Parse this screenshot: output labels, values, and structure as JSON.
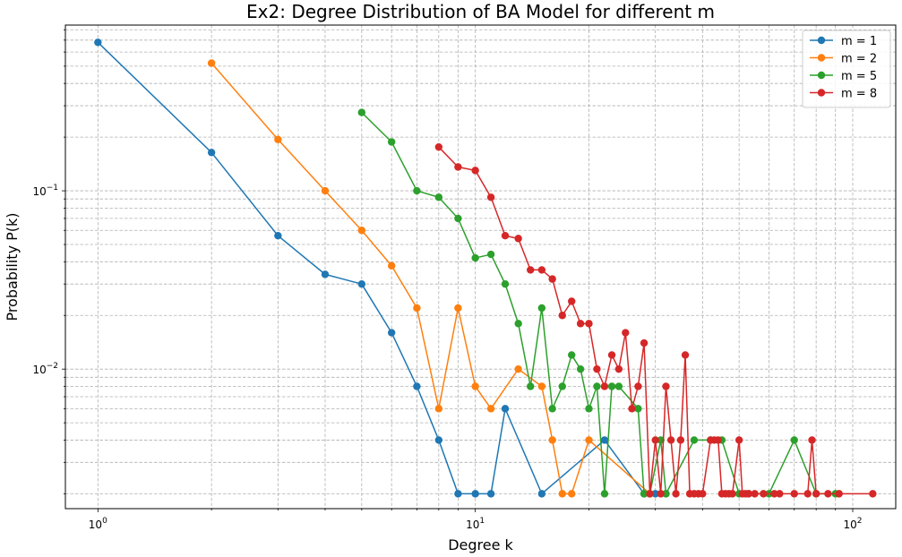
{
  "chart_data": {
    "type": "line",
    "title": "Ex2: Degree Distribution of BA Model for different m",
    "xlabel": "Degree k",
    "ylabel": "Probability P(k)",
    "xscale": "log",
    "yscale": "log",
    "xlim": [
      0.82,
      130
    ],
    "ylim": [
      0.00165,
      0.85
    ],
    "grid": true,
    "legend_position": "top-right",
    "x_ticks": [
      {
        "value": 1,
        "base": "10",
        "exp": "0"
      },
      {
        "value": 10,
        "base": "10",
        "exp": "1"
      },
      {
        "value": 100,
        "base": "10",
        "exp": "2"
      }
    ],
    "y_ticks": [
      {
        "value": 0.01,
        "base": "10",
        "exp": "−2"
      },
      {
        "value": 0.1,
        "base": "10",
        "exp": "−1"
      }
    ],
    "series": [
      {
        "name": "m = 1",
        "color": "#1f77b4",
        "x": [
          1,
          2,
          3,
          4,
          5,
          6,
          7,
          8,
          9,
          10,
          11,
          12,
          15,
          22,
          28,
          30,
          32
        ],
        "y": [
          0.68,
          0.164,
          0.056,
          0.034,
          0.03,
          0.016,
          0.008,
          0.004,
          0.002,
          0.002,
          0.002,
          0.006,
          0.002,
          0.004,
          0.002,
          0.002,
          0.002
        ]
      },
      {
        "name": "m = 2",
        "color": "#ff7f0e",
        "x": [
          2,
          3,
          4,
          5,
          6,
          7,
          8,
          9,
          10,
          11,
          13,
          15,
          16,
          17,
          18,
          20,
          29
        ],
        "y": [
          0.52,
          0.194,
          0.1,
          0.06,
          0.038,
          0.022,
          0.006,
          0.022,
          0.008,
          0.006,
          0.01,
          0.008,
          0.004,
          0.002,
          0.002,
          0.004,
          0.002
        ]
      },
      {
        "name": "m = 5",
        "color": "#2ca02c",
        "x": [
          5,
          6,
          7,
          8,
          9,
          10,
          11,
          12,
          13,
          14,
          15,
          16,
          17,
          18,
          19,
          20,
          21,
          22,
          23,
          24,
          27,
          28,
          29,
          31,
          32,
          38,
          42,
          45,
          50,
          53,
          60,
          70,
          80,
          90
        ],
        "y": [
          0.275,
          0.188,
          0.1,
          0.092,
          0.07,
          0.042,
          0.044,
          0.03,
          0.018,
          0.008,
          0.022,
          0.006,
          0.008,
          0.012,
          0.01,
          0.006,
          0.008,
          0.002,
          0.008,
          0.008,
          0.006,
          0.002,
          0.002,
          0.004,
          0.002,
          0.004,
          0.004,
          0.004,
          0.002,
          0.002,
          0.002,
          0.004,
          0.002,
          0.002
        ]
      },
      {
        "name": "m = 8",
        "color": "#d62728",
        "x": [
          8,
          9,
          10,
          11,
          12,
          13,
          14,
          15,
          16,
          17,
          18,
          19,
          20,
          21,
          22,
          23,
          24,
          25,
          26,
          27,
          28,
          29,
          30,
          31,
          32,
          33,
          34,
          35,
          36,
          37,
          38,
          39,
          40,
          42,
          43,
          44,
          45,
          46,
          47,
          48,
          50,
          51,
          52,
          53,
          55,
          58,
          62,
          64,
          70,
          76,
          78,
          80,
          86,
          92,
          113
        ],
        "y": [
          0.176,
          0.136,
          0.13,
          0.092,
          0.056,
          0.054,
          0.036,
          0.036,
          0.032,
          0.02,
          0.024,
          0.018,
          0.018,
          0.01,
          0.008,
          0.012,
          0.01,
          0.016,
          0.006,
          0.008,
          0.014,
          0.002,
          0.004,
          0.002,
          0.008,
          0.004,
          0.002,
          0.004,
          0.012,
          0.002,
          0.002,
          0.002,
          0.002,
          0.004,
          0.004,
          0.004,
          0.002,
          0.002,
          0.002,
          0.002,
          0.004,
          0.002,
          0.002,
          0.002,
          0.002,
          0.002,
          0.002,
          0.002,
          0.002,
          0.002,
          0.004,
          0.002,
          0.002,
          0.002,
          0.002
        ]
      }
    ]
  }
}
